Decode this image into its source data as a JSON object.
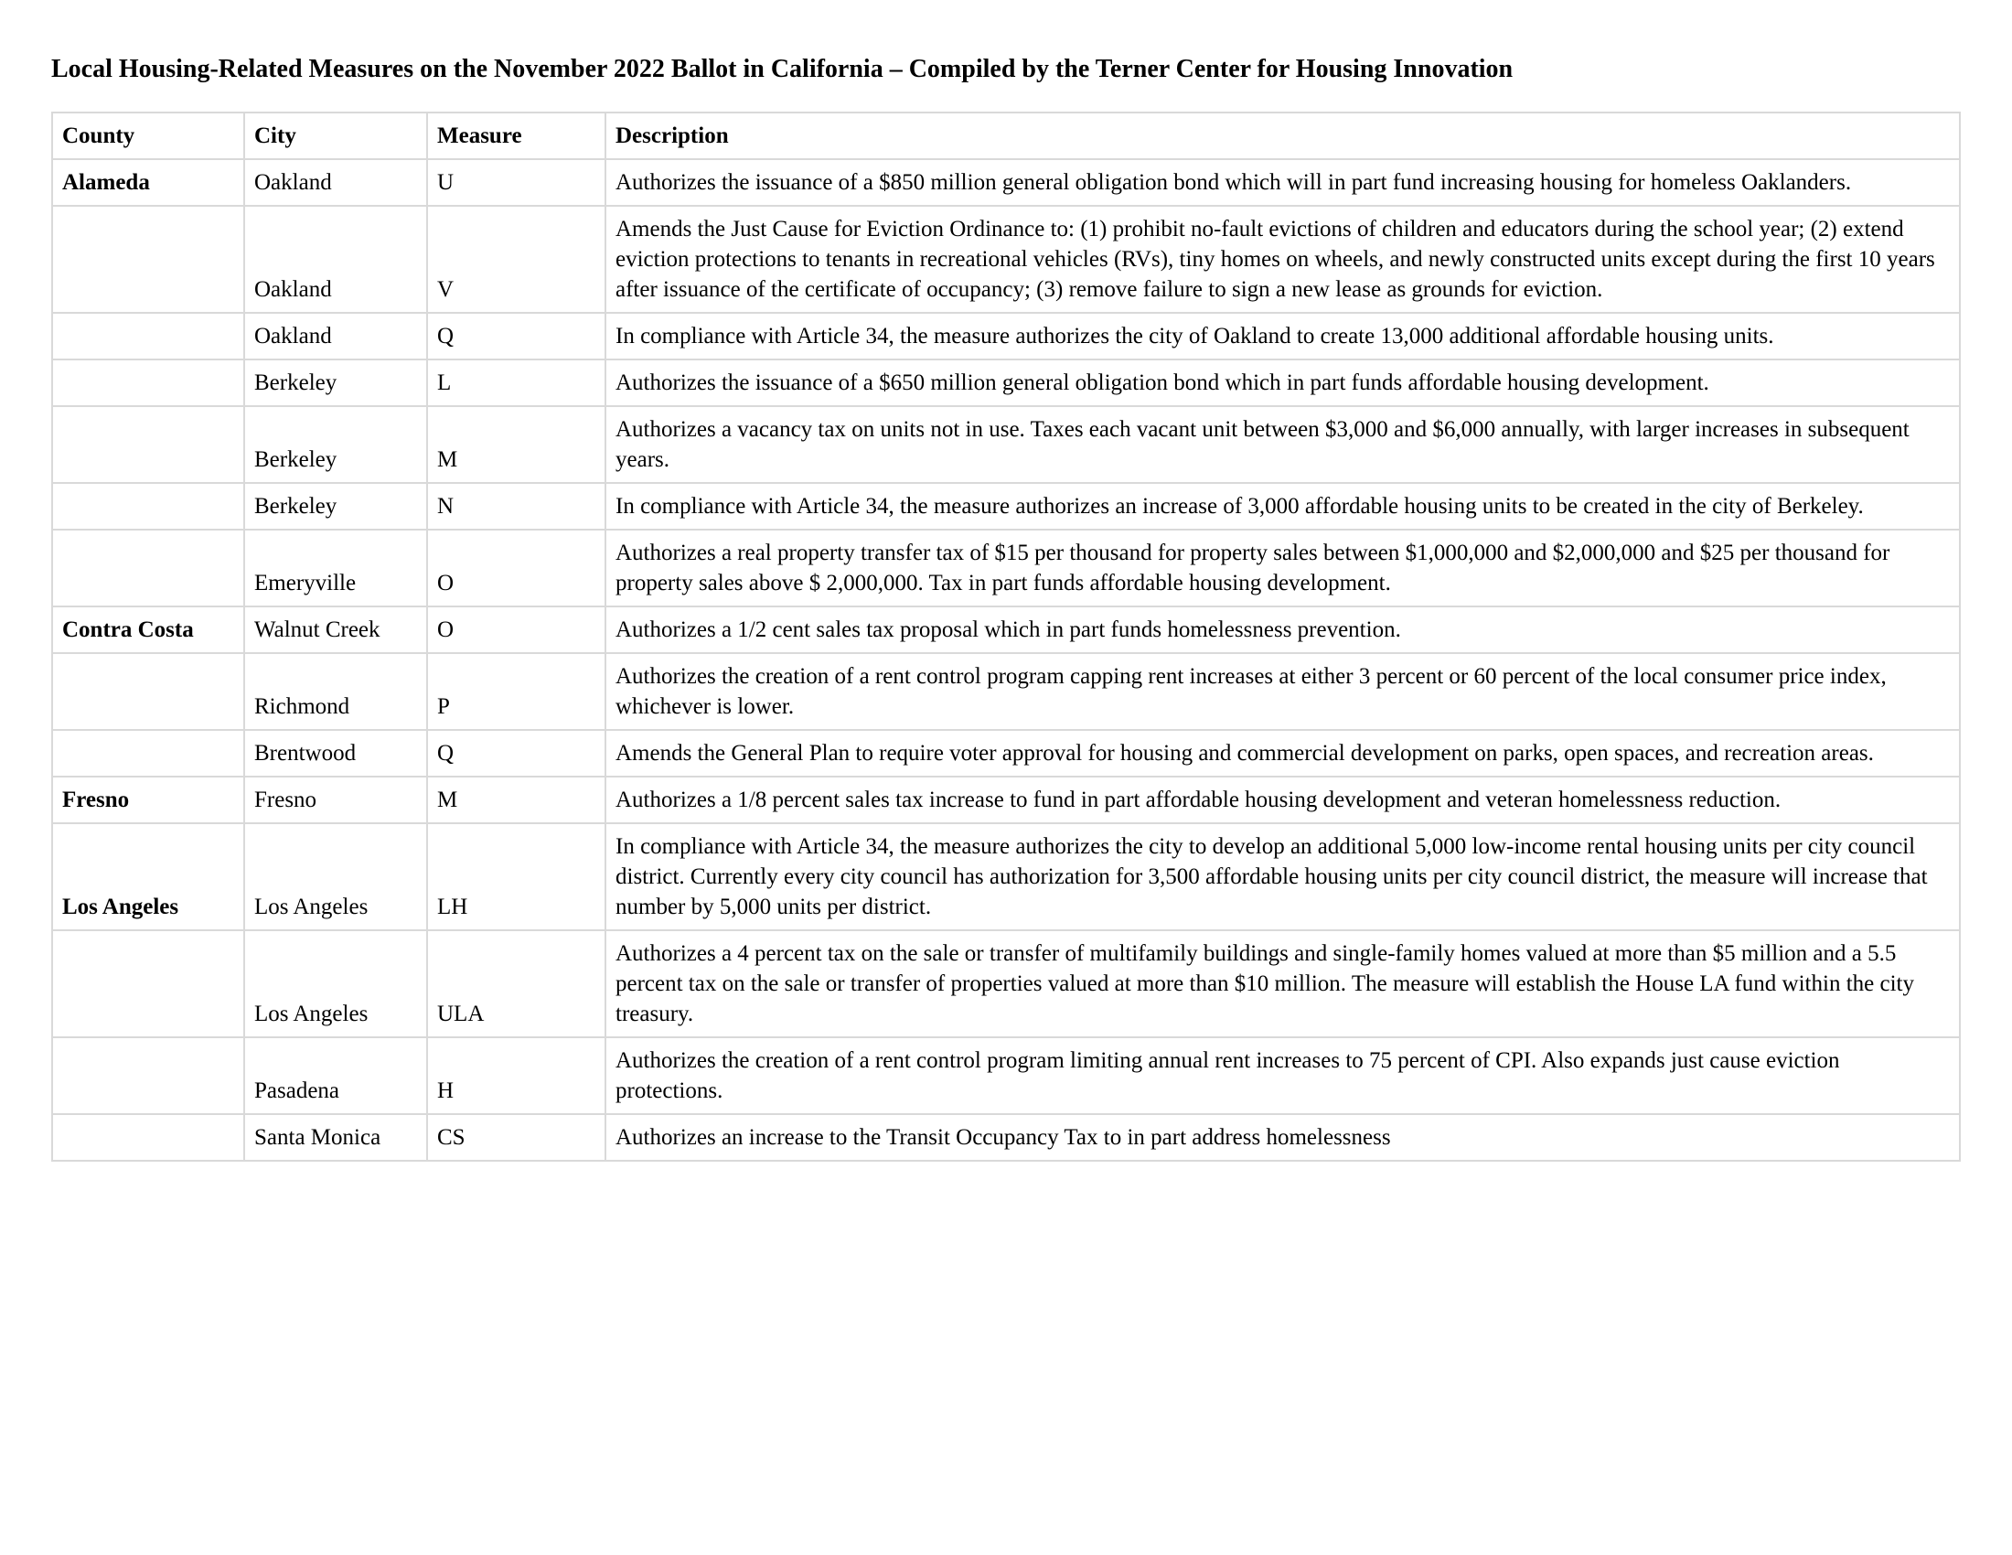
{
  "title": "Local Housing-Related Measures on the November 2022 Ballot in California – Compiled by the Terner Center for Housing Innovation",
  "columns": [
    "County",
    "City",
    "Measure",
    "Description"
  ],
  "rows": [
    {
      "county": "Alameda",
      "county_bold": true,
      "city": "Oakland",
      "measure": "U",
      "description": "Authorizes the issuance of a $850 million general obligation bond which will in part fund increasing housing for homeless Oaklanders."
    },
    {
      "county": "",
      "county_bold": false,
      "city": "Oakland",
      "measure": "V",
      "description": "Amends the Just Cause for Eviction Ordinance to: (1) prohibit no-fault evictions of children and educators during the school year; (2) extend eviction protections to tenants in recreational vehicles (RVs), tiny homes on wheels, and newly constructed units except during the first 10 years after issuance of the certificate of occupancy; (3) remove failure to sign a new lease as grounds for eviction."
    },
    {
      "county": "",
      "county_bold": false,
      "city": "Oakland",
      "measure": "Q",
      "description": "In compliance with Article 34, the measure authorizes the city of Oakland to create 13,000 additional affordable housing units."
    },
    {
      "county": "",
      "county_bold": false,
      "city": "Berkeley",
      "measure": "L",
      "description": "Authorizes the issuance of a $650 million general obligation bond which in part funds affordable housing development."
    },
    {
      "county": "",
      "county_bold": false,
      "city": "Berkeley",
      "measure": "M",
      "description": "Authorizes a vacancy tax on units not in use. Taxes each vacant unit between $3,000 and $6,000 annually, with larger increases in subsequent years."
    },
    {
      "county": "",
      "county_bold": false,
      "city": "Berkeley",
      "measure": "N",
      "description": "In compliance with Article 34, the measure authorizes an increase of 3,000 affordable housing units to be created in the city of Berkeley."
    },
    {
      "county": "",
      "county_bold": false,
      "city": "Emeryville",
      "measure": "O",
      "description": "Authorizes a real property transfer tax of $15 per thousand for property sales between $1,000,000 and $2,000,000 and $25 per thousand for property sales above $ 2,000,000. Tax in part funds affordable housing development."
    },
    {
      "county": "Contra Costa",
      "county_bold": true,
      "city": "Walnut Creek",
      "measure": "O",
      "description": "Authorizes a 1/2 cent sales tax proposal which in part funds homelessness prevention."
    },
    {
      "county": "",
      "county_bold": false,
      "city": "Richmond",
      "measure": "P",
      "description": "Authorizes the creation of a rent control program capping rent increases at either 3 percent or 60 percent of the local consumer price index, whichever is lower."
    },
    {
      "county": "",
      "county_bold": false,
      "city": "Brentwood",
      "measure": "Q",
      "description": "Amends the General Plan to require voter approval for housing and commercial development on parks, open spaces, and recreation areas."
    },
    {
      "county": "Fresno",
      "county_bold": true,
      "city": "Fresno",
      "measure": "M",
      "description": "Authorizes a 1/8 percent sales tax increase to fund in part affordable housing development and veteran homelessness reduction."
    },
    {
      "county": "Los Angeles",
      "county_bold": true,
      "city": "Los Angeles",
      "measure": "LH",
      "description": "In compliance with Article 34, the measure authorizes the city to develop an additional 5,000 low-income rental housing units per city council district. Currently every city council has authorization for 3,500 affordable housing units per city council district, the measure will increase that number by 5,000 units per district."
    },
    {
      "county": "",
      "county_bold": false,
      "city": "Los Angeles",
      "measure": "ULA",
      "description": "Authorizes a 4 percent tax on the sale or transfer of multifamily buildings and single-family homes valued at more than $5 million and a 5.5 percent tax on the sale or transfer of properties valued at more than $10 million. The measure will establish the House LA fund within the city treasury."
    },
    {
      "county": "",
      "county_bold": false,
      "city": "Pasadena",
      "measure": "H",
      "description": "Authorizes the creation of a rent control program limiting annual  rent increases  to 75 percent of CPI. Also expands just cause eviction protections."
    },
    {
      "county": "",
      "county_bold": false,
      "city": "Santa Monica",
      "measure": "CS",
      "description": "Authorizes an increase to the Transit Occupancy Tax to in part address homelessness"
    }
  ]
}
